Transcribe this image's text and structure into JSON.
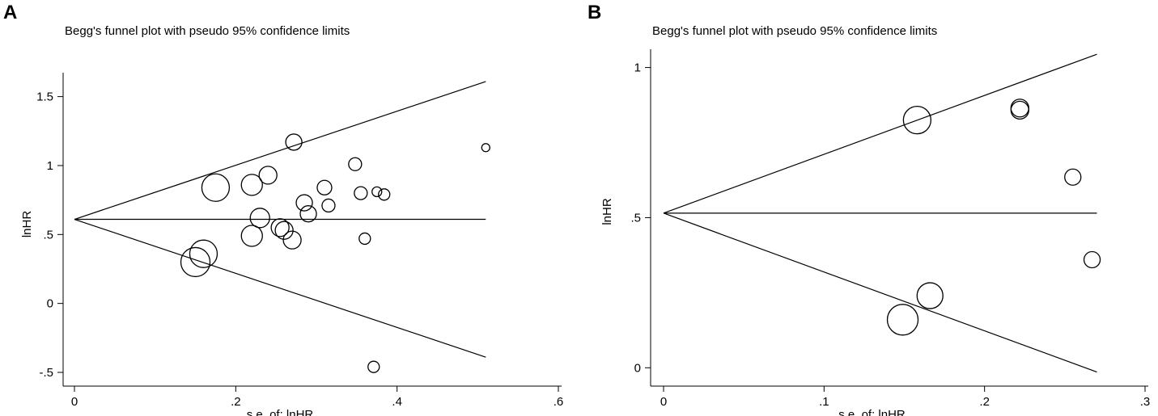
{
  "panels": [
    {
      "letter": "A"
    },
    {
      "letter": "B"
    }
  ],
  "chart_data": [
    {
      "type": "scatter",
      "title": "Begg's funnel plot with pseudo 95% confidence limits",
      "xlabel": "s.e. of: lnHR",
      "ylabel": "lnHR",
      "xlim": [
        0,
        0.6
      ],
      "ylim": [
        -0.5,
        1.65
      ],
      "xticks": [
        0,
        0.2,
        0.4,
        0.6
      ],
      "xtick_labels": [
        "0",
        ".2",
        ".4",
        ".6"
      ],
      "yticks": [
        -0.5,
        0,
        0.5,
        1,
        1.5
      ],
      "ytick_labels": [
        "-.5",
        "0",
        ".5",
        "1",
        "1.5"
      ],
      "pooled_estimate": 0.61,
      "funnel_xmax": 0.51,
      "points": [
        {
          "x": 0.15,
          "y": 0.3,
          "size": 18
        },
        {
          "x": 0.16,
          "y": 0.36,
          "size": 17
        },
        {
          "x": 0.175,
          "y": 0.84,
          "size": 17
        },
        {
          "x": 0.22,
          "y": 0.86,
          "size": 13
        },
        {
          "x": 0.22,
          "y": 0.49,
          "size": 13
        },
        {
          "x": 0.23,
          "y": 0.62,
          "size": 12
        },
        {
          "x": 0.24,
          "y": 0.93,
          "size": 11
        },
        {
          "x": 0.255,
          "y": 0.55,
          "size": 11
        },
        {
          "x": 0.26,
          "y": 0.53,
          "size": 11
        },
        {
          "x": 0.27,
          "y": 0.46,
          "size": 11
        },
        {
          "x": 0.272,
          "y": 1.17,
          "size": 10
        },
        {
          "x": 0.285,
          "y": 0.73,
          "size": 10
        },
        {
          "x": 0.29,
          "y": 0.65,
          "size": 10
        },
        {
          "x": 0.31,
          "y": 0.84,
          "size": 9
        },
        {
          "x": 0.315,
          "y": 0.71,
          "size": 8
        },
        {
          "x": 0.348,
          "y": 1.01,
          "size": 8
        },
        {
          "x": 0.355,
          "y": 0.8,
          "size": 8
        },
        {
          "x": 0.36,
          "y": 0.47,
          "size": 7
        },
        {
          "x": 0.375,
          "y": 0.81,
          "size": 6
        },
        {
          "x": 0.384,
          "y": 0.79,
          "size": 7
        },
        {
          "x": 0.371,
          "y": -0.46,
          "size": 7
        },
        {
          "x": 0.51,
          "y": 1.13,
          "size": 5
        }
      ]
    },
    {
      "type": "scatter",
      "title": "Begg's funnel plot with pseudo 95% confidence limits",
      "xlabel": "s.e. of: lnHR",
      "ylabel": "lnHR",
      "xlim": [
        0,
        0.3
      ],
      "ylim": [
        -0.01,
        1.05
      ],
      "xticks": [
        0,
        0.1,
        0.2,
        0.3
      ],
      "xtick_labels": [
        "0",
        ".1",
        ".2",
        ".3"
      ],
      "yticks": [
        0,
        0.5,
        1
      ],
      "ytick_labels": [
        "0",
        ".5",
        "1"
      ],
      "pooled_estimate": 0.515,
      "funnel_xmax": 0.27,
      "points": [
        {
          "x": 0.158,
          "y": 0.825,
          "size": 17
        },
        {
          "x": 0.222,
          "y": 0.865,
          "size": 11
        },
        {
          "x": 0.222,
          "y": 0.858,
          "size": 11
        },
        {
          "x": 0.255,
          "y": 0.635,
          "size": 10
        },
        {
          "x": 0.267,
          "y": 0.36,
          "size": 10
        },
        {
          "x": 0.166,
          "y": 0.24,
          "size": 16
        },
        {
          "x": 0.149,
          "y": 0.16,
          "size": 19
        }
      ]
    }
  ]
}
